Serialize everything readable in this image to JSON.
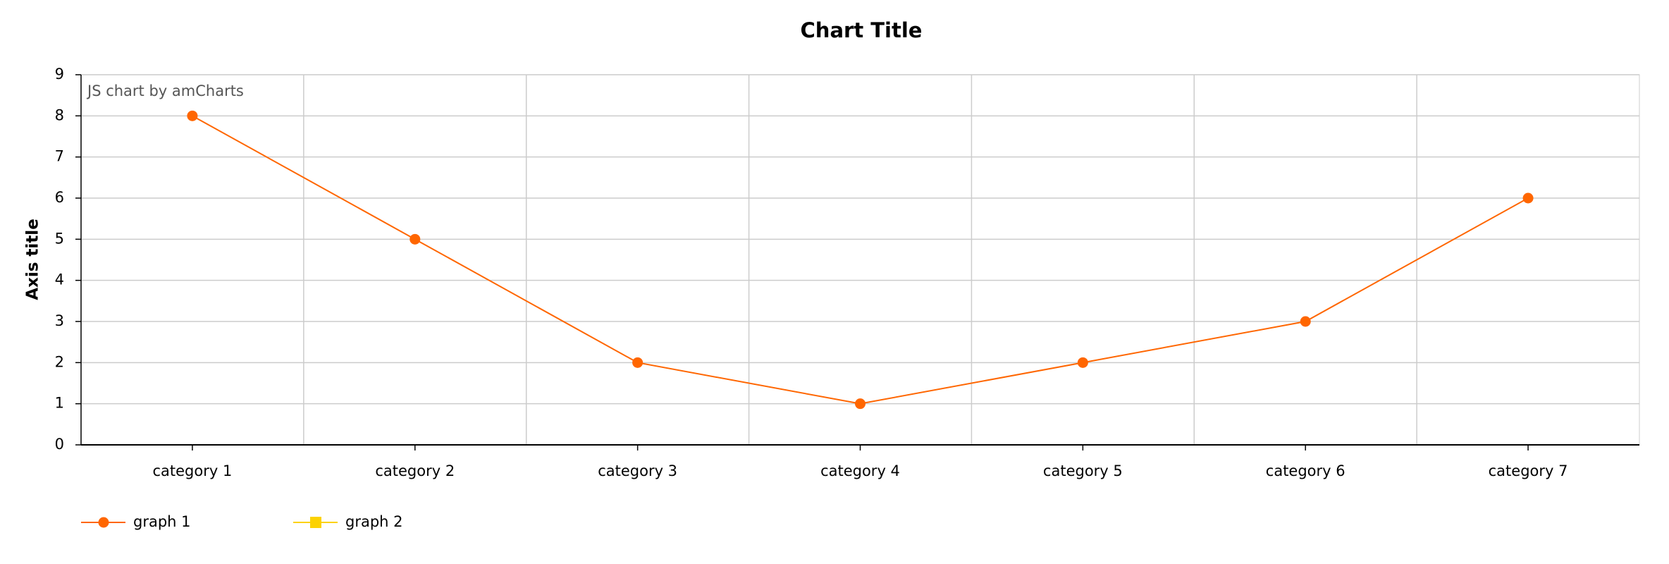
{
  "chart_data": {
    "type": "line",
    "title": "Chart Title",
    "y_axis_title": "Axis title",
    "credit": "JS chart by amCharts",
    "categories": [
      "category 1",
      "category 2",
      "category 3",
      "category 4",
      "category 5",
      "category 6",
      "category 7"
    ],
    "series": [
      {
        "name": "graph 1",
        "color": "#ff6600",
        "marker": "circle",
        "values": [
          8,
          5,
          2,
          1,
          2,
          3,
          6
        ]
      },
      {
        "name": "graph 2",
        "color": "#fcd202",
        "marker": "square",
        "values": [
          null,
          null,
          null,
          null,
          null,
          null,
          null
        ]
      }
    ],
    "ylim": [
      0,
      9
    ],
    "yticks": [
      0,
      1,
      2,
      3,
      4,
      5,
      6,
      7,
      8,
      9
    ],
    "grid": true,
    "legend": "bottom-left"
  }
}
